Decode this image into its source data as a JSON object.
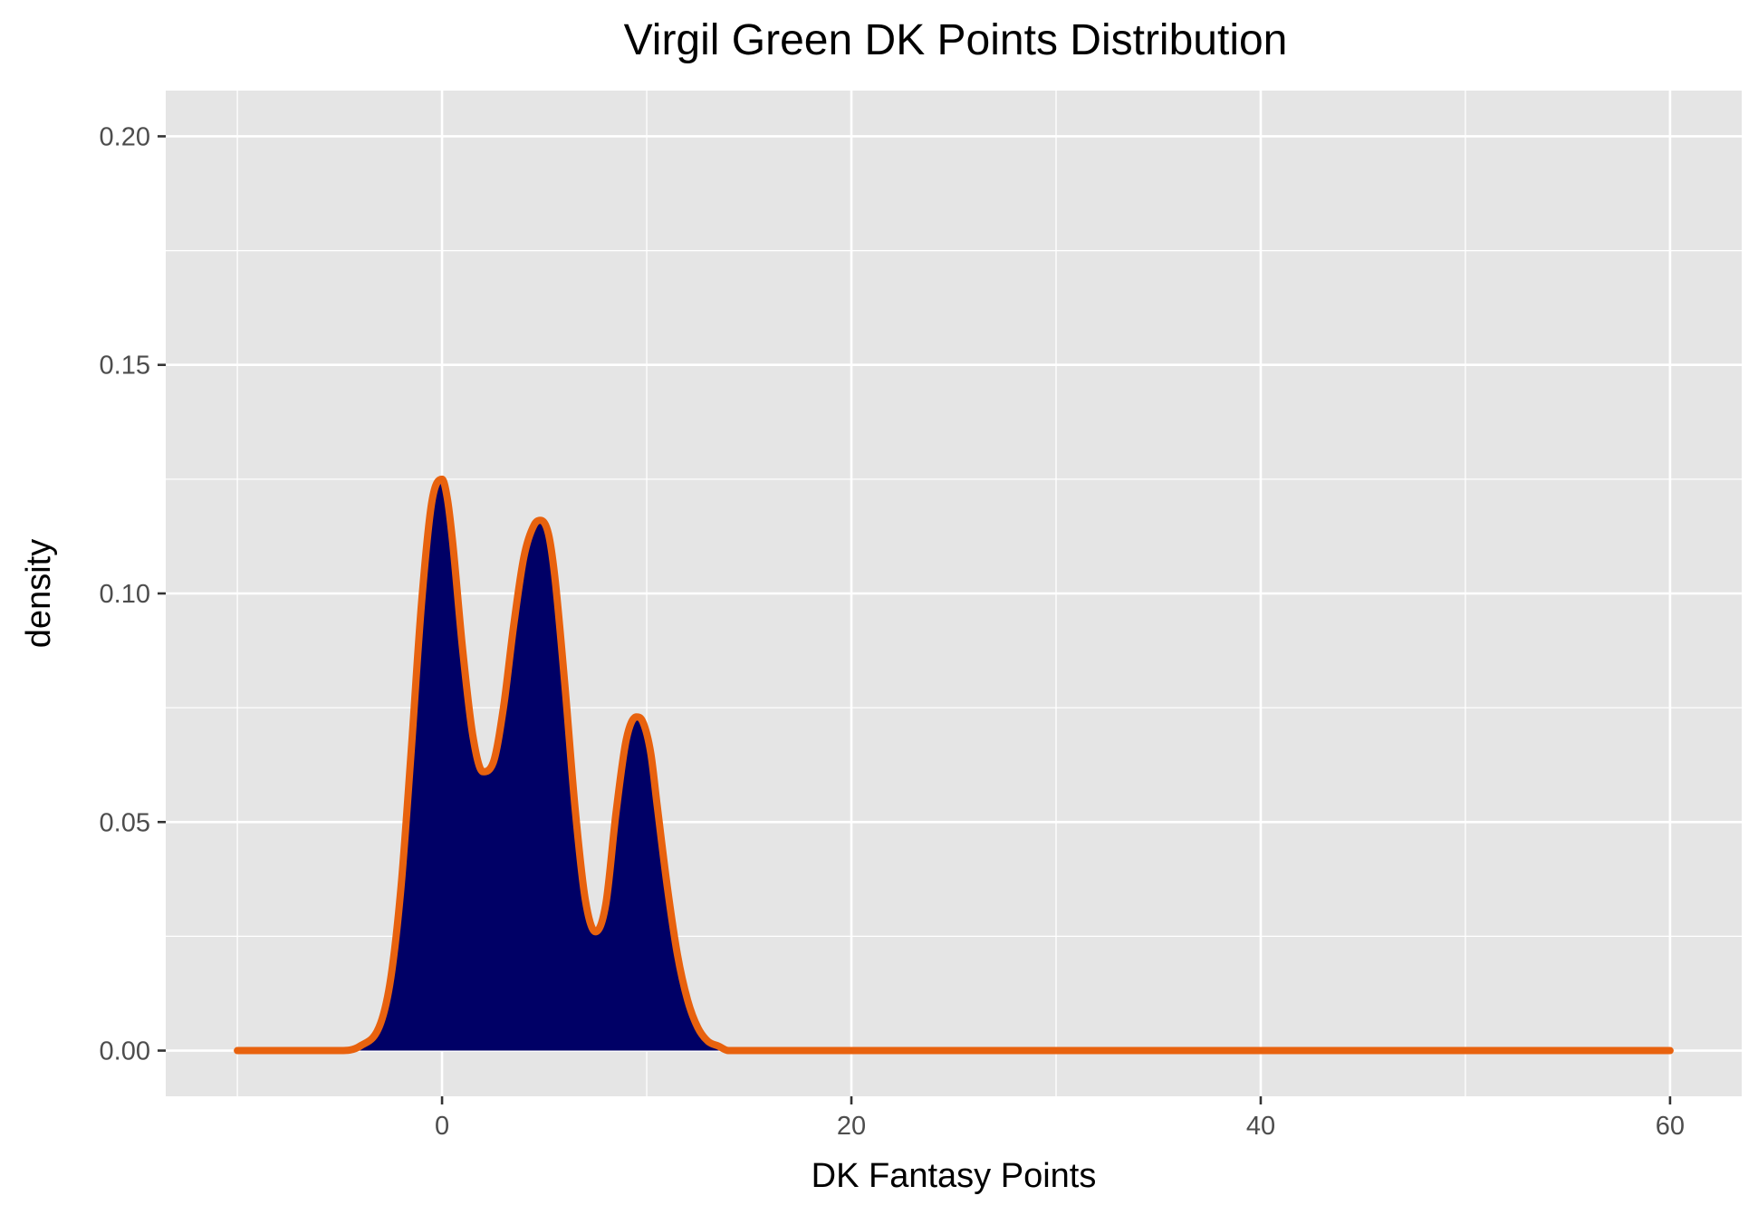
{
  "chart_data": {
    "type": "area",
    "title": "Virgil Green DK Points Distribution",
    "xlabel": "DK Fantasy Points",
    "ylabel": "density",
    "xlim": [
      -13.5,
      63.5
    ],
    "ylim": [
      -0.01,
      0.21
    ],
    "x_ticks": [
      {
        "value": 0,
        "label": "0"
      },
      {
        "value": 20,
        "label": "20"
      },
      {
        "value": 40,
        "label": "40"
      },
      {
        "value": 60,
        "label": "60"
      }
    ],
    "x_minor_ticks": [
      -10,
      10,
      30,
      50
    ],
    "y_ticks": [
      {
        "value": 0.0,
        "label": "0.00"
      },
      {
        "value": 0.05,
        "label": "0.05"
      },
      {
        "value": 0.1,
        "label": "0.10"
      },
      {
        "value": 0.15,
        "label": "0.15"
      },
      {
        "value": 0.2,
        "label": "0.20"
      }
    ],
    "y_minor_ticks": [
      0.025,
      0.075,
      0.125,
      0.175
    ],
    "grid": true,
    "legend": "none",
    "colors": {
      "panel_background": "#e5e5e5",
      "gridline": "#ffffff",
      "fill": "#000066",
      "line": "#e8620e"
    },
    "series": [
      {
        "x": [
          -10,
          -5,
          -4,
          -3,
          -2.5,
          -2,
          -1.5,
          -1,
          -0.5,
          0,
          0.25,
          0.5,
          1,
          1.5,
          2,
          2.5,
          3,
          3.5,
          4,
          4.5,
          4.8,
          5.2,
          5.5,
          6,
          6.5,
          7,
          7.5,
          8,
          8.5,
          9,
          9.5,
          9.8,
          10.2,
          10.5,
          11,
          11.5,
          12,
          12.5,
          13,
          13.5,
          14,
          15,
          16,
          20,
          30,
          40,
          50,
          60
        ],
        "y": [
          0,
          0,
          0.001,
          0.006,
          0.016,
          0.036,
          0.066,
          0.098,
          0.12,
          0.125,
          0.121,
          0.112,
          0.088,
          0.069,
          0.061,
          0.063,
          0.075,
          0.093,
          0.108,
          0.115,
          0.116,
          0.113,
          0.104,
          0.08,
          0.053,
          0.033,
          0.026,
          0.032,
          0.052,
          0.068,
          0.073,
          0.072,
          0.065,
          0.054,
          0.036,
          0.021,
          0.011,
          0.005,
          0.002,
          0.001,
          0.0,
          0,
          0,
          0,
          0,
          0,
          0,
          0
        ]
      }
    ]
  }
}
